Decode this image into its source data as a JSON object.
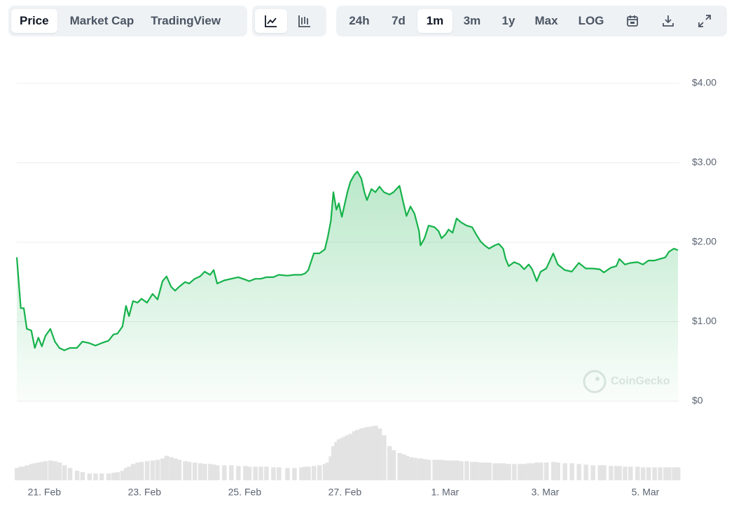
{
  "toolbar": {
    "view_tabs": [
      "Price",
      "Market Cap",
      "TradingView"
    ],
    "view_active": 0,
    "range_tabs": [
      "24h",
      "7d",
      "1m",
      "3m",
      "1y",
      "Max",
      "LOG"
    ],
    "range_active": 2
  },
  "chart_data": {
    "type": "line",
    "color": "#16b24b",
    "watermark": "CoinGecko",
    "x": [
      20.45,
      20.53,
      20.59,
      20.65,
      20.74,
      20.81,
      20.88,
      20.95,
      21.02,
      21.12,
      21.21,
      21.3,
      21.4,
      21.51,
      21.65,
      21.76,
      21.9,
      22.02,
      22.14,
      22.28,
      22.38,
      22.46,
      22.56,
      22.63,
      22.69,
      22.77,
      22.86,
      22.94,
      23.05,
      23.16,
      23.26,
      23.36,
      23.44,
      23.53,
      23.61,
      23.69,
      23.81,
      23.89,
      24.0,
      24.11,
      24.2,
      24.31,
      24.38,
      24.45,
      24.59,
      24.73,
      24.87,
      25.01,
      25.09,
      25.21,
      25.32,
      25.43,
      25.57,
      25.68,
      25.85,
      25.99,
      26.13,
      26.21,
      26.27,
      26.38,
      26.49,
      26.6,
      26.66,
      26.72,
      26.77,
      26.83,
      26.88,
      26.94,
      27.0,
      27.05,
      27.11,
      27.19,
      27.25,
      27.33,
      27.39,
      27.44,
      27.53,
      27.61,
      27.69,
      27.78,
      27.89,
      27.97,
      28.09,
      28.17,
      28.23,
      28.31,
      28.39,
      28.48,
      28.51,
      28.59,
      28.67,
      28.79,
      28.87,
      28.93,
      29.01,
      29.07,
      29.15,
      29.23,
      29.32,
      29.43,
      29.54,
      29.62,
      29.71,
      29.79,
      29.88,
      29.99,
      30.07,
      30.16,
      30.21,
      30.27,
      30.38,
      30.49,
      30.58,
      30.67,
      30.74,
      30.83,
      30.91,
      31.02,
      31.16,
      31.25,
      31.39,
      31.53,
      31.67,
      31.81,
      31.95,
      32.09,
      32.17,
      32.31,
      32.42,
      32.48,
      32.59,
      32.7,
      32.84,
      32.95,
      33.06,
      33.18,
      33.29,
      33.4,
      33.47,
      33.57,
      33.65
    ],
    "values": [
      1.81,
      1.17,
      1.17,
      0.91,
      0.89,
      0.67,
      0.8,
      0.69,
      0.82,
      0.91,
      0.75,
      0.67,
      0.64,
      0.67,
      0.67,
      0.75,
      0.73,
      0.7,
      0.73,
      0.76,
      0.84,
      0.85,
      0.94,
      1.2,
      1.07,
      1.26,
      1.24,
      1.29,
      1.24,
      1.35,
      1.28,
      1.51,
      1.57,
      1.44,
      1.39,
      1.44,
      1.5,
      1.48,
      1.54,
      1.57,
      1.63,
      1.59,
      1.65,
      1.48,
      1.52,
      1.54,
      1.56,
      1.53,
      1.51,
      1.54,
      1.54,
      1.56,
      1.56,
      1.59,
      1.58,
      1.59,
      1.59,
      1.61,
      1.65,
      1.86,
      1.86,
      1.91,
      2.07,
      2.27,
      2.63,
      2.41,
      2.49,
      2.32,
      2.49,
      2.63,
      2.76,
      2.85,
      2.89,
      2.8,
      2.63,
      2.53,
      2.67,
      2.63,
      2.7,
      2.63,
      2.6,
      2.63,
      2.71,
      2.49,
      2.33,
      2.45,
      2.36,
      2.14,
      1.96,
      2.05,
      2.21,
      2.19,
      2.14,
      2.05,
      2.1,
      2.16,
      2.12,
      2.3,
      2.25,
      2.21,
      2.19,
      2.1,
      2.01,
      1.96,
      1.92,
      1.96,
      1.98,
      1.92,
      1.79,
      1.7,
      1.75,
      1.72,
      1.66,
      1.72,
      1.66,
      1.51,
      1.63,
      1.67,
      1.86,
      1.72,
      1.65,
      1.63,
      1.74,
      1.67,
      1.67,
      1.66,
      1.62,
      1.68,
      1.7,
      1.79,
      1.72,
      1.74,
      1.75,
      1.72,
      1.77,
      1.77,
      1.79,
      1.81,
      1.88,
      1.92,
      1.9
    ],
    "volume": {
      "color": "#e3e3e3",
      "values": [
        18,
        20,
        20,
        22,
        24,
        25,
        26,
        27,
        28,
        29,
        28,
        26,
        22,
        18,
        14,
        12,
        10,
        10,
        10,
        10,
        11,
        12,
        14,
        18,
        20,
        24,
        26,
        27,
        28,
        29,
        30,
        32,
        36,
        34,
        32,
        30,
        28,
        27,
        26,
        25,
        24,
        24,
        23,
        22,
        22,
        22,
        21,
        21,
        20,
        20,
        20,
        20,
        19,
        19,
        18,
        18,
        19,
        20,
        20,
        21,
        22,
        24,
        26,
        35,
        50,
        56,
        60,
        62,
        64,
        66,
        68,
        72,
        74,
        76,
        77,
        78,
        79,
        80,
        76,
        66,
        50,
        44,
        40,
        38,
        36,
        34,
        33,
        32,
        32,
        31,
        30,
        30,
        30,
        30,
        29,
        29,
        29,
        29,
        28,
        28,
        27,
        27,
        26,
        26,
        26,
        25,
        25,
        25,
        24,
        24,
        24,
        24,
        24,
        25,
        25,
        26,
        26,
        26,
        27,
        26,
        25,
        25,
        24,
        23,
        22,
        22,
        22,
        21,
        21,
        21,
        20,
        20,
        20,
        19,
        19,
        19,
        19,
        19,
        19,
        19,
        19
      ]
    },
    "xlim": [
      20.45,
      33.65
    ],
    "xticks": [
      {
        "value": 21,
        "label": "21. Feb"
      },
      {
        "value": 23,
        "label": "23. Feb"
      },
      {
        "value": 25,
        "label": "25. Feb"
      },
      {
        "value": 27,
        "label": "27. Feb"
      },
      {
        "value": 29,
        "label": "1. Mar"
      },
      {
        "value": 31,
        "label": "3. Mar"
      },
      {
        "value": 33,
        "label": "5. Mar"
      }
    ],
    "ylim": [
      0,
      4
    ],
    "yticks": [
      {
        "value": 0,
        "label": "$0"
      },
      {
        "value": 1,
        "label": "$1.00"
      },
      {
        "value": 2,
        "label": "$2.00"
      },
      {
        "value": 3,
        "label": "$3.00"
      },
      {
        "value": 4,
        "label": "$4.00"
      }
    ],
    "grid": true
  }
}
